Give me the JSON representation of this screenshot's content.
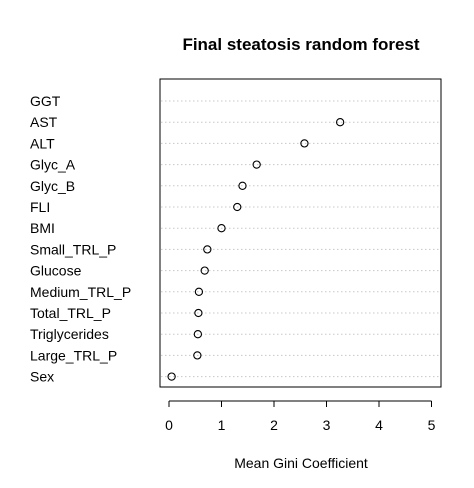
{
  "chart_data": {
    "type": "scatter",
    "title": "Final steatosis random forest",
    "xlabel": "Mean Gini Coefficient",
    "ylabel": "",
    "categories": [
      "GGT",
      "AST",
      "ALT",
      "Glyc_A",
      "Glyc_B",
      "FLI",
      "BMI",
      "Small_TRL_P",
      "Glucose",
      "Medium_TRL_P",
      "Total_TRL_P",
      "Triglycerides",
      "Large_TRL_P",
      "Sex"
    ],
    "values": [
      null,
      3.26,
      2.58,
      1.67,
      1.4,
      1.3,
      1.0,
      0.73,
      0.68,
      0.57,
      0.56,
      0.55,
      0.54,
      0.05
    ],
    "xlim": [
      0,
      5
    ],
    "xticks": [
      "0",
      "1",
      "2",
      "3",
      "4",
      "5"
    ],
    "grid": "horizontal dotted",
    "point_style": "open-circle"
  }
}
